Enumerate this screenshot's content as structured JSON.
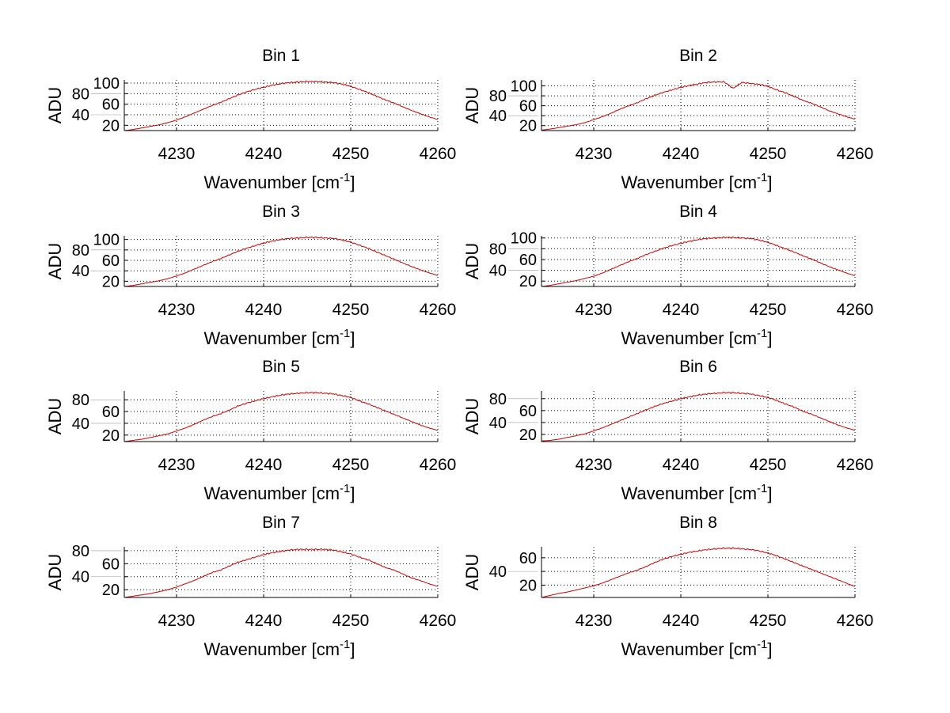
{
  "chart_data": [
    {
      "type": "line",
      "title": "Bin 1",
      "xlabel": "Wavenumber [cm",
      "xlabel_sup": "-1",
      "xlabel_end": "]",
      "ylabel": "ADU",
      "xlim": [
        4224,
        4260
      ],
      "ylim": [
        10,
        106
      ],
      "xticks": [
        4230,
        4240,
        4250,
        4260
      ],
      "yticks": [
        20,
        40,
        60,
        80,
        100
      ],
      "grid": true,
      "color": "#cc0000",
      "x_start": 4224,
      "x_step": 1,
      "values": [
        10,
        12,
        15,
        18,
        21,
        25,
        30,
        36,
        43,
        50,
        57,
        63,
        70,
        77,
        83,
        88,
        92,
        96,
        99,
        101,
        102,
        103,
        103,
        102,
        101,
        98,
        94,
        88,
        82,
        75,
        68,
        62,
        55,
        48,
        42,
        36,
        31
      ]
    },
    {
      "type": "line",
      "title": "Bin 2",
      "xlabel": "Wavenumber [cm",
      "xlabel_sup": "-1",
      "xlabel_end": "]",
      "ylabel": "ADU",
      "xlim": [
        4224,
        4260
      ],
      "ylim": [
        10,
        112
      ],
      "xticks": [
        4230,
        4240,
        4250,
        4260
      ],
      "yticks": [
        20,
        40,
        60,
        80,
        100
      ],
      "grid": true,
      "color": "#cc0000",
      "x_start": 4224,
      "x_step": 1,
      "values": [
        11,
        13,
        16,
        19,
        22,
        26,
        32,
        38,
        45,
        53,
        60,
        66,
        74,
        81,
        87,
        92,
        97,
        101,
        104,
        107,
        108,
        108,
        95,
        107,
        105,
        103,
        99,
        92,
        86,
        79,
        71,
        65,
        58,
        50,
        44,
        38,
        33
      ]
    },
    {
      "type": "line",
      "title": "Bin 3",
      "xlabel": "Wavenumber [cm",
      "xlabel_sup": "-1",
      "xlabel_end": "]",
      "ylabel": "ADU",
      "xlim": [
        4224,
        4260
      ],
      "ylim": [
        10,
        107
      ],
      "xticks": [
        4230,
        4240,
        4250,
        4260
      ],
      "yticks": [
        20,
        40,
        60,
        80,
        100
      ],
      "grid": true,
      "color": "#cc0000",
      "x_start": 4224,
      "x_step": 1,
      "values": [
        10,
        12,
        15,
        18,
        21,
        25,
        30,
        36,
        43,
        50,
        57,
        63,
        70,
        77,
        83,
        88,
        93,
        97,
        100,
        102,
        103,
        104,
        104,
        103,
        102,
        99,
        95,
        89,
        83,
        76,
        69,
        62,
        55,
        48,
        42,
        36,
        31
      ]
    },
    {
      "type": "line",
      "title": "Bin 4",
      "xlabel": "Wavenumber [cm",
      "xlabel_sup": "-1",
      "xlabel_end": "]",
      "ylabel": "ADU",
      "xlim": [
        4224,
        4260
      ],
      "ylim": [
        10,
        104
      ],
      "xticks": [
        4230,
        4240,
        4250,
        4260
      ],
      "yticks": [
        20,
        40,
        60,
        80,
        100
      ],
      "grid": true,
      "color": "#cc0000",
      "x_start": 4224,
      "x_step": 1,
      "values": [
        10,
        12,
        15,
        18,
        21,
        25,
        29,
        35,
        42,
        49,
        56,
        62,
        69,
        75,
        81,
        86,
        90,
        94,
        97,
        99,
        100,
        101,
        101,
        100,
        99,
        96,
        92,
        86,
        80,
        74,
        67,
        61,
        54,
        47,
        41,
        35,
        30
      ]
    },
    {
      "type": "line",
      "title": "Bin 5",
      "xlabel": "Wavenumber [cm",
      "xlabel_sup": "-1",
      "xlabel_end": "]",
      "ylabel": "ADU",
      "xlim": [
        4224,
        4260
      ],
      "ylim": [
        9,
        95
      ],
      "xticks": [
        4230,
        4240,
        4250,
        4260
      ],
      "yticks": [
        20,
        40,
        60,
        80
      ],
      "grid": true,
      "color": "#cc0000",
      "x_start": 4224,
      "x_step": 1,
      "values": [
        9,
        11,
        13,
        16,
        19,
        22,
        27,
        32,
        38,
        45,
        51,
        56,
        62,
        69,
        74,
        78,
        82,
        85,
        88,
        90,
        91,
        92,
        92,
        91,
        90,
        87,
        84,
        78,
        73,
        67,
        61,
        55,
        49,
        43,
        37,
        32,
        28
      ]
    },
    {
      "type": "line",
      "title": "Bin 6",
      "xlabel": "Wavenumber [cm",
      "xlabel_sup": "-1",
      "xlabel_end": "]",
      "ylabel": "ADU",
      "xlim": [
        4224,
        4260
      ],
      "ylim": [
        8,
        93
      ],
      "xticks": [
        4230,
        4240,
        4250,
        4260
      ],
      "yticks": [
        20,
        40,
        60,
        80
      ],
      "grid": true,
      "color": "#cc0000",
      "x_start": 4224,
      "x_step": 1,
      "values": [
        9,
        10,
        12,
        15,
        18,
        21,
        26,
        31,
        37,
        43,
        49,
        55,
        61,
        67,
        72,
        76,
        80,
        83,
        86,
        88,
        89,
        90,
        90,
        89,
        88,
        85,
        82,
        77,
        71,
        66,
        59,
        54,
        48,
        42,
        36,
        31,
        27
      ]
    },
    {
      "type": "line",
      "title": "Bin 7",
      "xlabel": "Wavenumber [cm",
      "xlabel_sup": "-1",
      "xlabel_end": "]",
      "ylabel": "ADU",
      "xlim": [
        4224,
        4260
      ],
      "ylim": [
        8,
        86
      ],
      "xticks": [
        4230,
        4240,
        4250,
        4260
      ],
      "yticks": [
        20,
        40,
        60,
        80
      ],
      "grid": true,
      "color": "#cc0000",
      "x_start": 4224,
      "x_step": 1,
      "values": [
        8,
        10,
        12,
        14,
        17,
        20,
        24,
        29,
        34,
        40,
        46,
        50,
        56,
        62,
        66,
        70,
        74,
        77,
        79,
        81,
        82,
        82,
        82,
        82,
        81,
        78,
        75,
        70,
        66,
        60,
        54,
        50,
        44,
        38,
        34,
        29,
        25
      ]
    },
    {
      "type": "line",
      "title": "Bin 8",
      "xlabel": "Wavenumber [cm",
      "xlabel_sup": "-1",
      "xlabel_end": "]",
      "ylabel": "ADU",
      "xlim": [
        4224,
        4260
      ],
      "ylim": [
        2,
        76
      ],
      "xticks": [
        4230,
        4240,
        4250,
        4260
      ],
      "yticks": [
        20,
        40,
        60
      ],
      "grid": true,
      "color": "#cc0000",
      "x_start": 4224,
      "x_step": 1,
      "values": [
        2,
        5,
        8,
        10,
        13,
        16,
        19,
        23,
        28,
        33,
        38,
        42,
        47,
        53,
        58,
        62,
        65,
        68,
        70,
        72,
        73,
        74,
        74,
        73,
        72,
        70,
        67,
        63,
        58,
        53,
        48,
        43,
        38,
        33,
        28,
        23,
        18
      ]
    }
  ]
}
